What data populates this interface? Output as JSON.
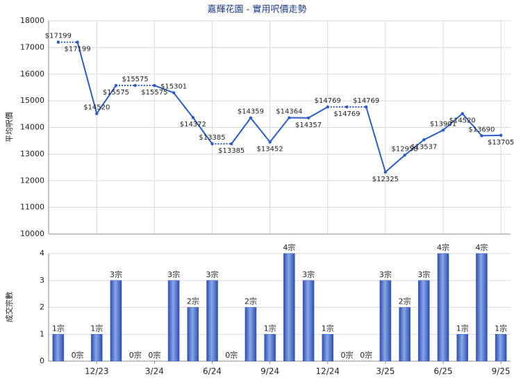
{
  "chart_data": [
    {
      "type": "line",
      "title": "嘉輝花園 - 實用呎價走勢",
      "y_label": "平均呎價",
      "series": [
        {
          "color": "#2c5bc7",
          "values": [
            17199,
            17199,
            14520,
            15575,
            15575,
            15575,
            15301,
            14372,
            13385,
            13385,
            14359,
            13452,
            14364,
            14357,
            14769,
            14769,
            14769,
            12325,
            12958,
            13537,
            13901,
            14520,
            13690,
            13705
          ],
          "value_labels": [
            "$17199",
            "$17199",
            "$14520",
            "$15575",
            "$15575",
            "$15575",
            "$15301",
            "$14372",
            "$13385",
            "$13385",
            "$14359",
            "$13452",
            "$14364",
            "$14357",
            "$14769",
            "$14769",
            "$14769",
            "$12325",
            "$12958",
            "$13537",
            "$13901",
            "$14520",
            "$13690",
            "$13705"
          ]
        }
      ],
      "ylim": [
        10000,
        18000
      ],
      "yticks": [
        10000,
        11000,
        12000,
        13000,
        14000,
        15000,
        16000,
        17000,
        18000
      ],
      "grid": true
    },
    {
      "type": "bar",
      "y_label": "成交宗數",
      "categories": [
        null,
        null,
        "12/23",
        null,
        null,
        "3/24",
        null,
        null,
        "6/24",
        null,
        null,
        "9/24",
        null,
        null,
        "12/24",
        null,
        null,
        "3/25",
        null,
        null,
        "6/25",
        null,
        null,
        "9/25"
      ],
      "values": [
        1,
        0,
        1,
        3,
        0,
        0,
        3,
        2,
        3,
        0,
        2,
        1,
        4,
        3,
        1,
        0,
        0,
        3,
        2,
        3,
        4,
        1,
        4,
        1
      ],
      "value_labels": [
        "1宗",
        "0宗",
        "1宗",
        "3宗",
        "0宗",
        "0宗",
        "3宗",
        "2宗",
        "3宗",
        "0宗",
        "2宗",
        "1宗",
        "4宗",
        "3宗",
        "1宗",
        "0宗",
        "0宗",
        "3宗",
        "2宗",
        "3宗",
        "4宗",
        "1宗",
        "4宗",
        "1宗"
      ],
      "color": "#3a63c4",
      "ylim": [
        0,
        4
      ],
      "yticks": [
        0,
        1,
        2,
        3,
        4
      ],
      "grid": true
    }
  ]
}
